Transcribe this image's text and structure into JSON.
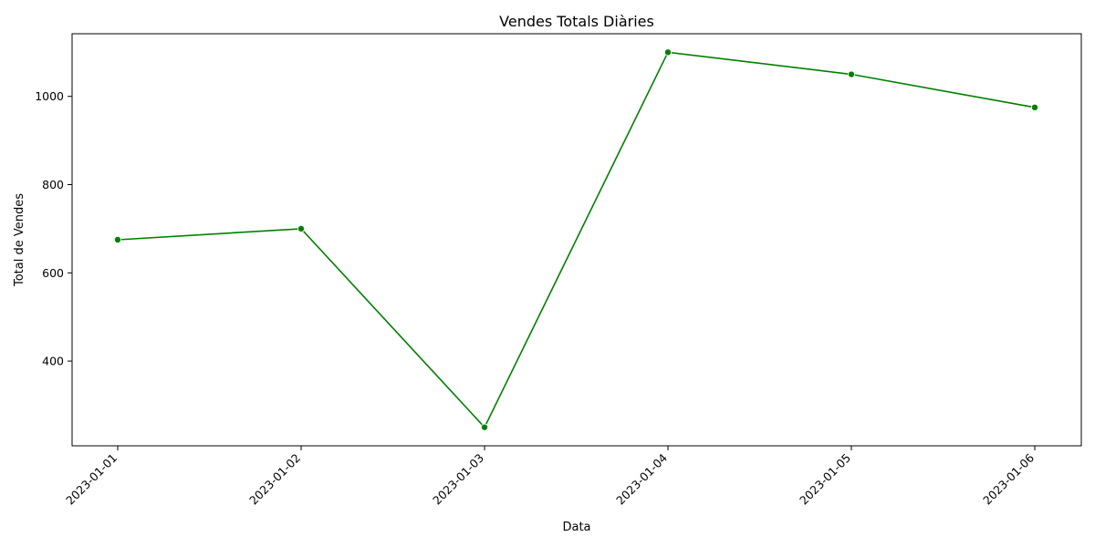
{
  "chart_data": {
    "type": "line",
    "title": "Vendes Totals Diàries",
    "xlabel": "Data",
    "ylabel": "Total de Vendes",
    "categories": [
      "2023-01-01",
      "2023-01-02",
      "2023-01-03",
      "2023-01-04",
      "2023-01-05",
      "2023-01-06"
    ],
    "series": [
      {
        "values": [
          675,
          700,
          250,
          1100,
          1050,
          975
        ],
        "color": "#008000",
        "marker": "circle"
      }
    ],
    "ylim": [
      208,
      1142
    ],
    "yticks": [
      400,
      600,
      800,
      1000
    ],
    "grid": false,
    "legend": "none"
  }
}
